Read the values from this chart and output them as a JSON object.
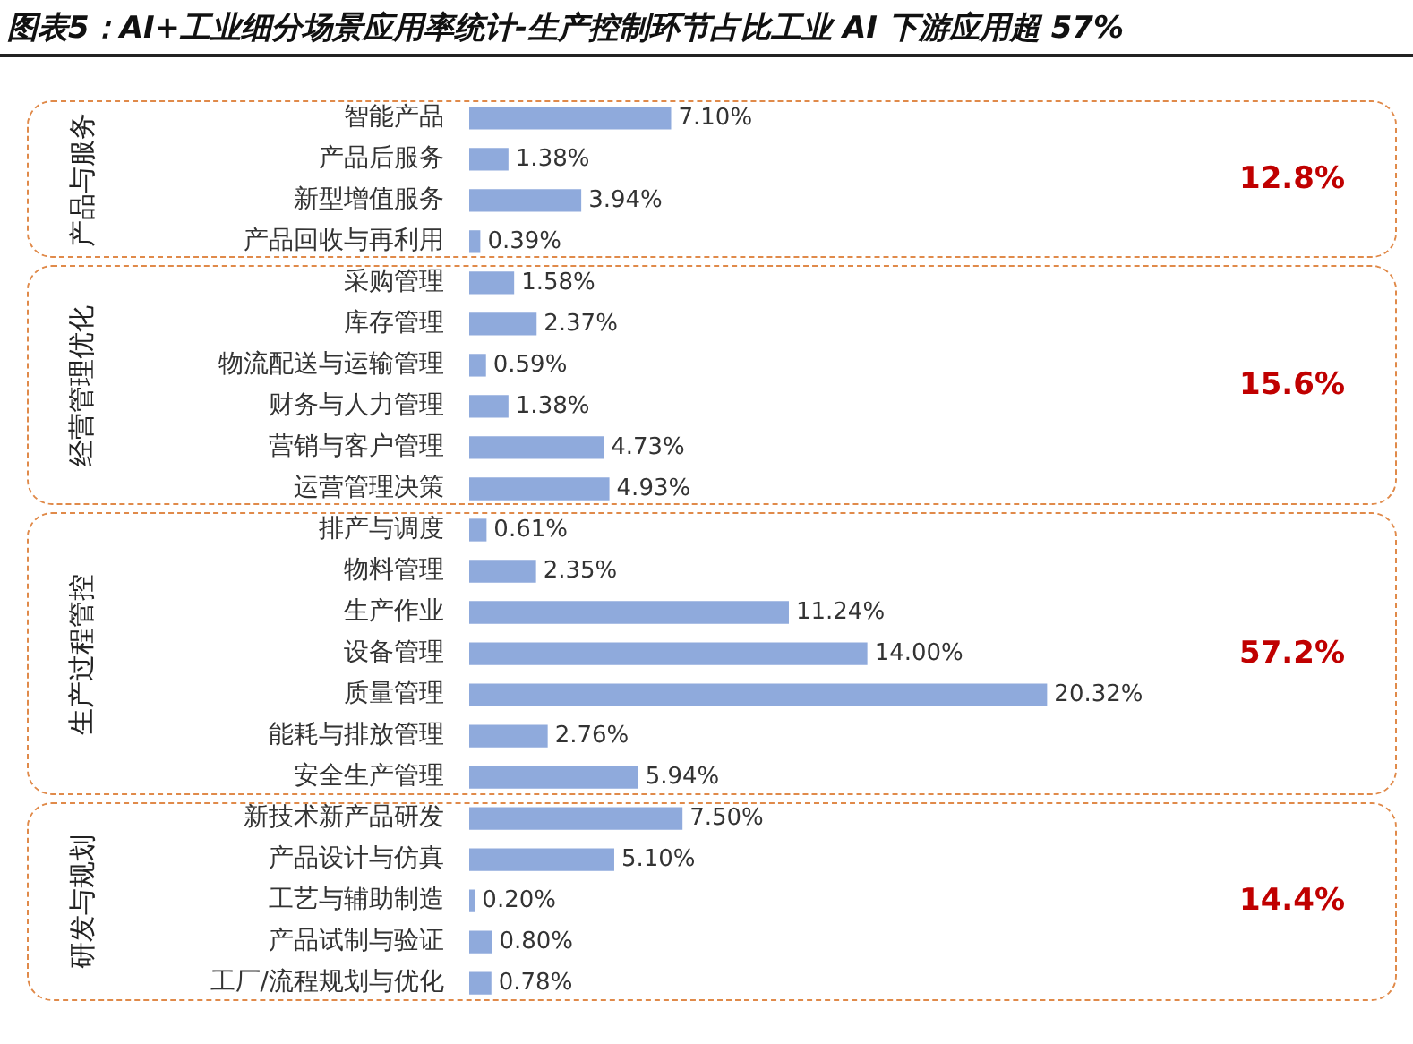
{
  "chart_data": {
    "type": "bar",
    "orientation": "horizontal",
    "title": "图表5：AI+工业细分场景应用率统计-生产控制环节占比工业 AI 下游应用超 57%",
    "categories": [
      "智能产品",
      "产品后服务",
      "新型增值服务",
      "产品回收与再利用",
      "采购管理",
      "库存管理",
      "物流配送与运输管理",
      "财务与人力管理",
      "营销与客户管理",
      "运营管理决策",
      "排产与调度",
      "物料管理",
      "生产作业",
      "设备管理",
      "质量管理",
      "能耗与排放管理",
      "安全生产管理",
      "新技术新产品研发",
      "产品设计与仿真",
      "工艺与辅助制造",
      "产品试制与验证",
      "工厂/流程规划与优化"
    ],
    "values": [
      7.1,
      1.38,
      3.94,
      0.39,
      1.58,
      2.37,
      0.59,
      1.38,
      4.73,
      4.93,
      0.61,
      2.35,
      11.24,
      14.0,
      20.32,
      2.76,
      5.94,
      7.5,
      5.1,
      0.2,
      0.8,
      0.78
    ],
    "value_labels": [
      "7.10%",
      "1.38%",
      "3.94%",
      "0.39%",
      "1.58%",
      "2.37%",
      "0.59%",
      "1.38%",
      "4.73%",
      "4.93%",
      "0.61%",
      "2.35%",
      "11.24%",
      "14.00%",
      "20.32%",
      "2.76%",
      "5.94%",
      "7.50%",
      "5.10%",
      "0.20%",
      "0.80%",
      "0.78%"
    ],
    "color": "#8faadc",
    "grid": false,
    "legend": false,
    "tick_labels": "y",
    "annotations": [
      "产品与服务",
      "经营管理优化",
      "生产过程管控",
      "研发与规划",
      "12.8%",
      "15.6%",
      "57.2%",
      "14.4%"
    ]
  }
}
